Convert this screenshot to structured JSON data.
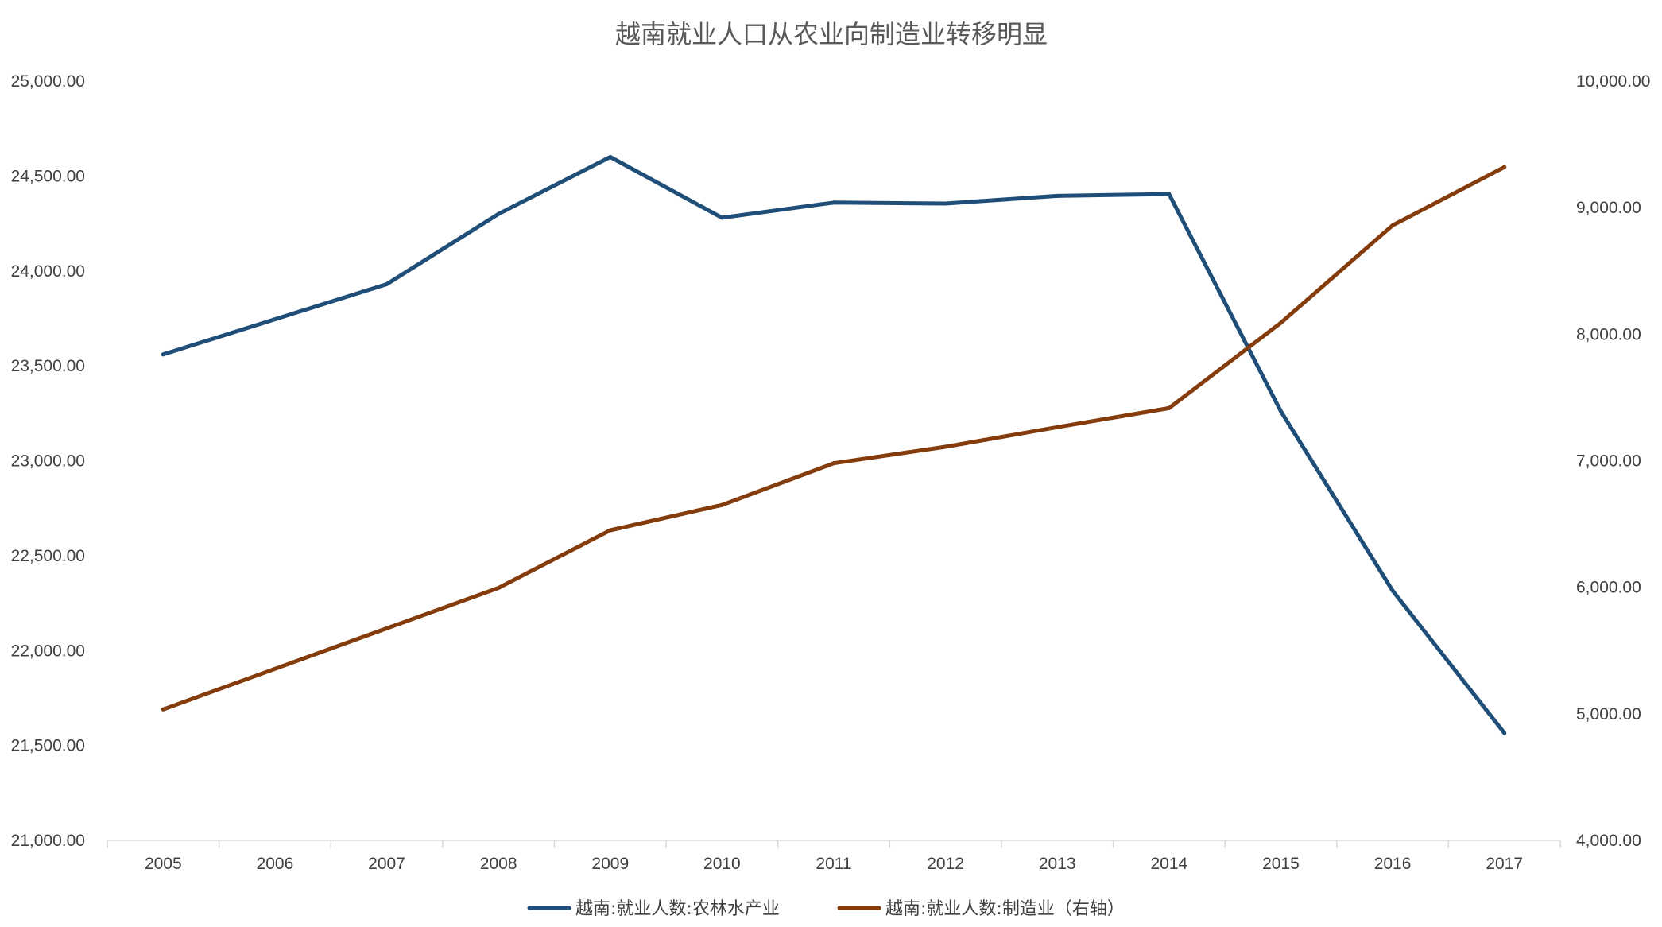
{
  "chart_data": {
    "type": "line",
    "title": "越南就业人口从农业向制造业转移明显",
    "categories": [
      "2005",
      "2006",
      "2007",
      "2008",
      "2009",
      "2010",
      "2011",
      "2012",
      "2013",
      "2014",
      "2015",
      "2016",
      "2017"
    ],
    "y_left": {
      "ylim": [
        21000,
        25000
      ],
      "ticks": [
        "21,000.00",
        "21,500.00",
        "22,000.00",
        "22,500.00",
        "23,000.00",
        "23,500.00",
        "24,000.00",
        "24,500.00",
        "25,000.00"
      ]
    },
    "y_right": {
      "ylim": [
        4000,
        10000
      ],
      "ticks": [
        "4,000.00",
        "5,000.00",
        "6,000.00",
        "7,000.00",
        "8,000.00",
        "9,000.00",
        "10,000.00"
      ]
    },
    "grid": false,
    "legend_position": "bottom",
    "series": [
      {
        "name": "越南:就业人数:农林水产业",
        "axis": "left",
        "color": "#1f4e79",
        "values": [
          23560,
          23745,
          23930,
          24300,
          24600,
          24280,
          24360,
          24355,
          24395,
          24405,
          23260,
          22315,
          21565
        ]
      },
      {
        "name": "越南:就业人数:制造业（右轴）",
        "axis": "right",
        "color": "#843c0c",
        "values": [
          5035,
          5355,
          5675,
          5995,
          6450,
          6650,
          6980,
          7110,
          7265,
          7415,
          8090,
          8860,
          9320
        ]
      }
    ]
  }
}
